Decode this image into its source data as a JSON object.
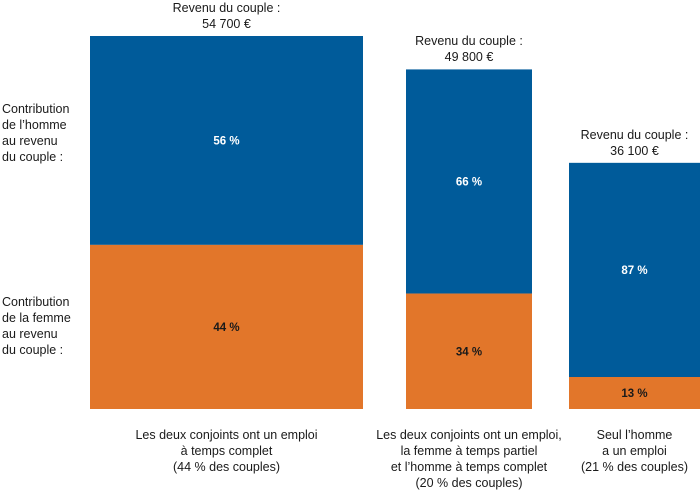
{
  "chart_data": {
    "type": "bar",
    "stacked": true,
    "colors": {
      "homme": "#005b9a",
      "femme": "#e2762a"
    },
    "side_labels": {
      "homme": [
        "Contribution",
        "de l’homme",
        "au revenu",
        "du couple :"
      ],
      "femme": [
        "Contribution",
        "de la femme",
        "au revenu",
        "du couple :"
      ]
    },
    "categories": [
      {
        "lines": [
          "Les deux conjoints ont un emploi",
          "à temps complet",
          "(44 % des couples)"
        ],
        "total_title": "Revenu du couple :",
        "total_value": "54 700 €",
        "total": 54700,
        "share_couples": 44,
        "homme_pct": 56,
        "femme_pct": 44,
        "homme_label": "56 %",
        "femme_label": "44 %"
      },
      {
        "lines": [
          "Les deux conjoints ont un emploi,",
          "la femme à temps partiel",
          "et l’homme à temps complet",
          "(20 % des couples)"
        ],
        "total_title": "Revenu du couple :",
        "total_value": "49 800 €",
        "total": 49800,
        "share_couples": 20,
        "homme_pct": 66,
        "femme_pct": 34,
        "homme_label": "66 %",
        "femme_label": "34 %"
      },
      {
        "lines": [
          "Seul l’homme",
          "a un emploi",
          "(21 % des couples)"
        ],
        "total_title": "Revenu du couple :",
        "total_value": "36 100 €",
        "total": 36100,
        "share_couples": 21,
        "homme_pct": 87,
        "femme_pct": 13,
        "homme_label": "87 %",
        "femme_label": "13 %"
      }
    ]
  }
}
